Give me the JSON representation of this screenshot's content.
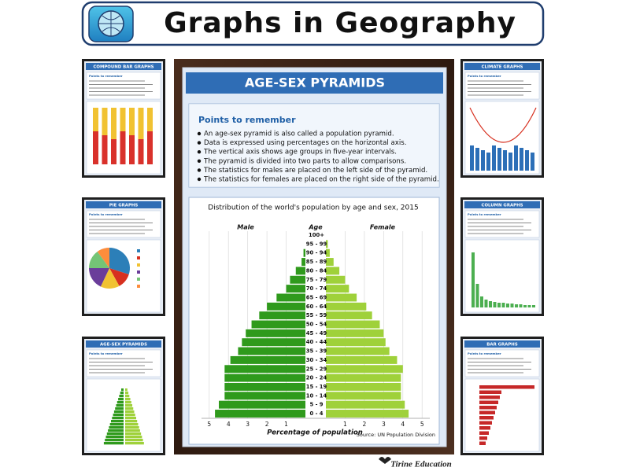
{
  "header": {
    "title": "Graphs in Geography"
  },
  "thumbnails": [
    {
      "title": "COMPOUND BAR GRAPHS",
      "subtitle": "Points to remember"
    },
    {
      "title": "PIE GRAPHS",
      "subtitle": "Points to remember"
    },
    {
      "title": "AGE-SEX PYRAMIDS",
      "subtitle": "Points to remember"
    },
    {
      "title": "CLIMATE GRAPHS",
      "subtitle": "Points to remember"
    },
    {
      "title": "COLUMN GRAPHS",
      "subtitle": "Points to remember"
    },
    {
      "title": "BAR GRAPHS",
      "subtitle": "Points to remember"
    }
  ],
  "poster": {
    "title": "AGE-SEX PYRAMIDS",
    "points_heading": "Points to remember",
    "points": [
      "An age-sex pyramid is also called a population pyramid.",
      "Data is expressed using percentages on the horizontal axis.",
      "The vertical axis shows age groups in five-year intervals.",
      "The pyramid is divided into two parts to allow comparisons.",
      "The statistics for males are placed on the left side of the pyramid.",
      "The statistics for females are placed on the right side of the pyramid."
    ]
  },
  "chart_data": {
    "type": "pyramid",
    "title": "Distribution of the world's population by age and sex, 2015",
    "column_label": "Age",
    "xlabel": "Percentage of population",
    "source": "Source: UN  Population Division",
    "categories": [
      "0 - 4",
      "5 - 9",
      "10 - 14",
      "15 - 19",
      "20 - 24",
      "25 - 29",
      "30 - 34",
      "35 - 39",
      "40 - 44",
      "45 - 49",
      "50 - 54",
      "55 - 59",
      "60 - 64",
      "65 - 69",
      "70 - 74",
      "75 - 79",
      "80 - 84",
      "85 - 89",
      "90 - 94",
      "95 - 99",
      "100+"
    ],
    "series": [
      {
        "name": "Male",
        "color": "#2f9a1c",
        "values": [
          4.7,
          4.5,
          4.2,
          4.2,
          4.2,
          4.2,
          3.9,
          3.5,
          3.3,
          3.1,
          2.8,
          2.4,
          2.0,
          1.5,
          1.0,
          0.8,
          0.5,
          0.2,
          0.1,
          0.0,
          0.0
        ]
      },
      {
        "name": "Female",
        "color": "#9fd13a",
        "values": [
          4.3,
          4.1,
          3.9,
          3.9,
          3.9,
          4.0,
          3.7,
          3.3,
          3.1,
          3.0,
          2.8,
          2.4,
          2.1,
          1.6,
          1.2,
          1.0,
          0.7,
          0.4,
          0.2,
          0.1,
          0.0
        ]
      }
    ],
    "xlim": [
      0,
      5.4
    ],
    "xticks": [
      1,
      2,
      3,
      4,
      5
    ]
  },
  "footer": "Tirine Education"
}
